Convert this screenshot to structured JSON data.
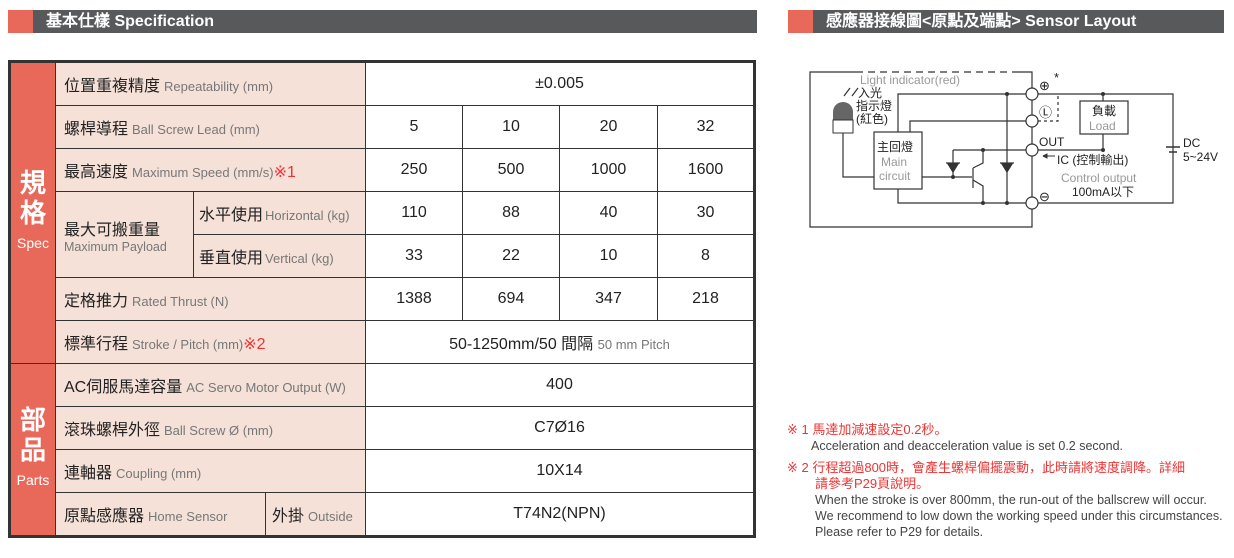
{
  "left_header": {
    "title": "基本仕樣 Specification"
  },
  "right_header": {
    "title": "感應器接線圖<原點及端點> Sensor Layout"
  },
  "spec": {
    "cat_spec": {
      "zh": "規格",
      "en": "Spec"
    },
    "cat_parts": {
      "zh": "部品",
      "en": "Parts"
    },
    "repeatability": {
      "zh": "位置重複精度",
      "en": "Repeatability (mm)",
      "value": "±0.005"
    },
    "lead": {
      "zh": "螺桿導程",
      "en": "Ball Screw Lead (mm)",
      "values": [
        "5",
        "10",
        "20",
        "32"
      ]
    },
    "speed": {
      "zh": "最高速度",
      "en": "Maximum Speed (mm/s)",
      "ref": "※1",
      "values": [
        "250",
        "500",
        "1000",
        "1600"
      ]
    },
    "payload": {
      "zh": "最大可搬重量",
      "en": "Maximum Payload",
      "horizontal": {
        "zh": "水平使用",
        "en": "Horizontal (kg)",
        "values": [
          "110",
          "88",
          "40",
          "30"
        ]
      },
      "vertical": {
        "zh": "垂直使用",
        "en": "Vertical (kg)",
        "values": [
          "33",
          "22",
          "10",
          "8"
        ]
      }
    },
    "thrust": {
      "zh": "定格推力",
      "en": "Rated Thrust (N)",
      "values": [
        "1388",
        "694",
        "347",
        "218"
      ]
    },
    "stroke": {
      "zh": "標準行程",
      "en": "Stroke / Pitch (mm)",
      "ref": "※2",
      "value": "50-1250mm/50 間隔",
      "value_en": "50 mm Pitch"
    },
    "motor": {
      "zh": "AC伺服馬達容量",
      "en": "AC Servo Motor Output (W)",
      "value": "400"
    },
    "screw": {
      "zh": "滾珠螺桿外徑",
      "en": "Ball Screw Ø (mm)",
      "value": "C7Ø16"
    },
    "coupling": {
      "zh": "連軸器",
      "en": "Coupling (mm)",
      "value": "10X14"
    },
    "sensor": {
      "zh": "原點感應器",
      "en": "Home Sensor",
      "sub_zh": "外掛",
      "sub_en": "Outside",
      "value": "T74N2(NPN)"
    }
  },
  "diagram": {
    "light_indicator": "Light indicator(red)",
    "led_zh1": "入光",
    "led_zh2": "指示燈",
    "led_zh3": "(紅色)",
    "plus": "⊕",
    "star": "*",
    "l": "Ⓛ",
    "out": "OUT",
    "minus": "⊖",
    "main_zh": "主回燈",
    "main_en1": "Main",
    "main_en2": "circuit",
    "load_zh": "負載",
    "load_en": "Load",
    "ic": "IC (控制輸出)",
    "control_output": "Control output",
    "current": "100mA以下",
    "dc": "DC",
    "voltage": "5~24V"
  },
  "notes": {
    "n1_zh": "※ 1 馬達加減速設定0.2秒。",
    "n1_en": "Acceleration and deacceleration value is set 0.2 second.",
    "n2_zh1": "※ 2 行程超過800時，會產生螺桿偏擺震動，此時請將速度調降。詳細",
    "n2_zh2": "請參考P29頁說明。",
    "n2_en1": "When the stroke is over 800mm, the run-out of the ballscrew will occur.",
    "n2_en2": "We recommend to low down the working speed under this circumstances.",
    "n2_en3": "Please refer to P29 for details."
  },
  "colors": {
    "accent": "#e8695a",
    "header_bg": "#58595b",
    "label_bg": "#f5e1d8",
    "note_red": "#e33333"
  }
}
